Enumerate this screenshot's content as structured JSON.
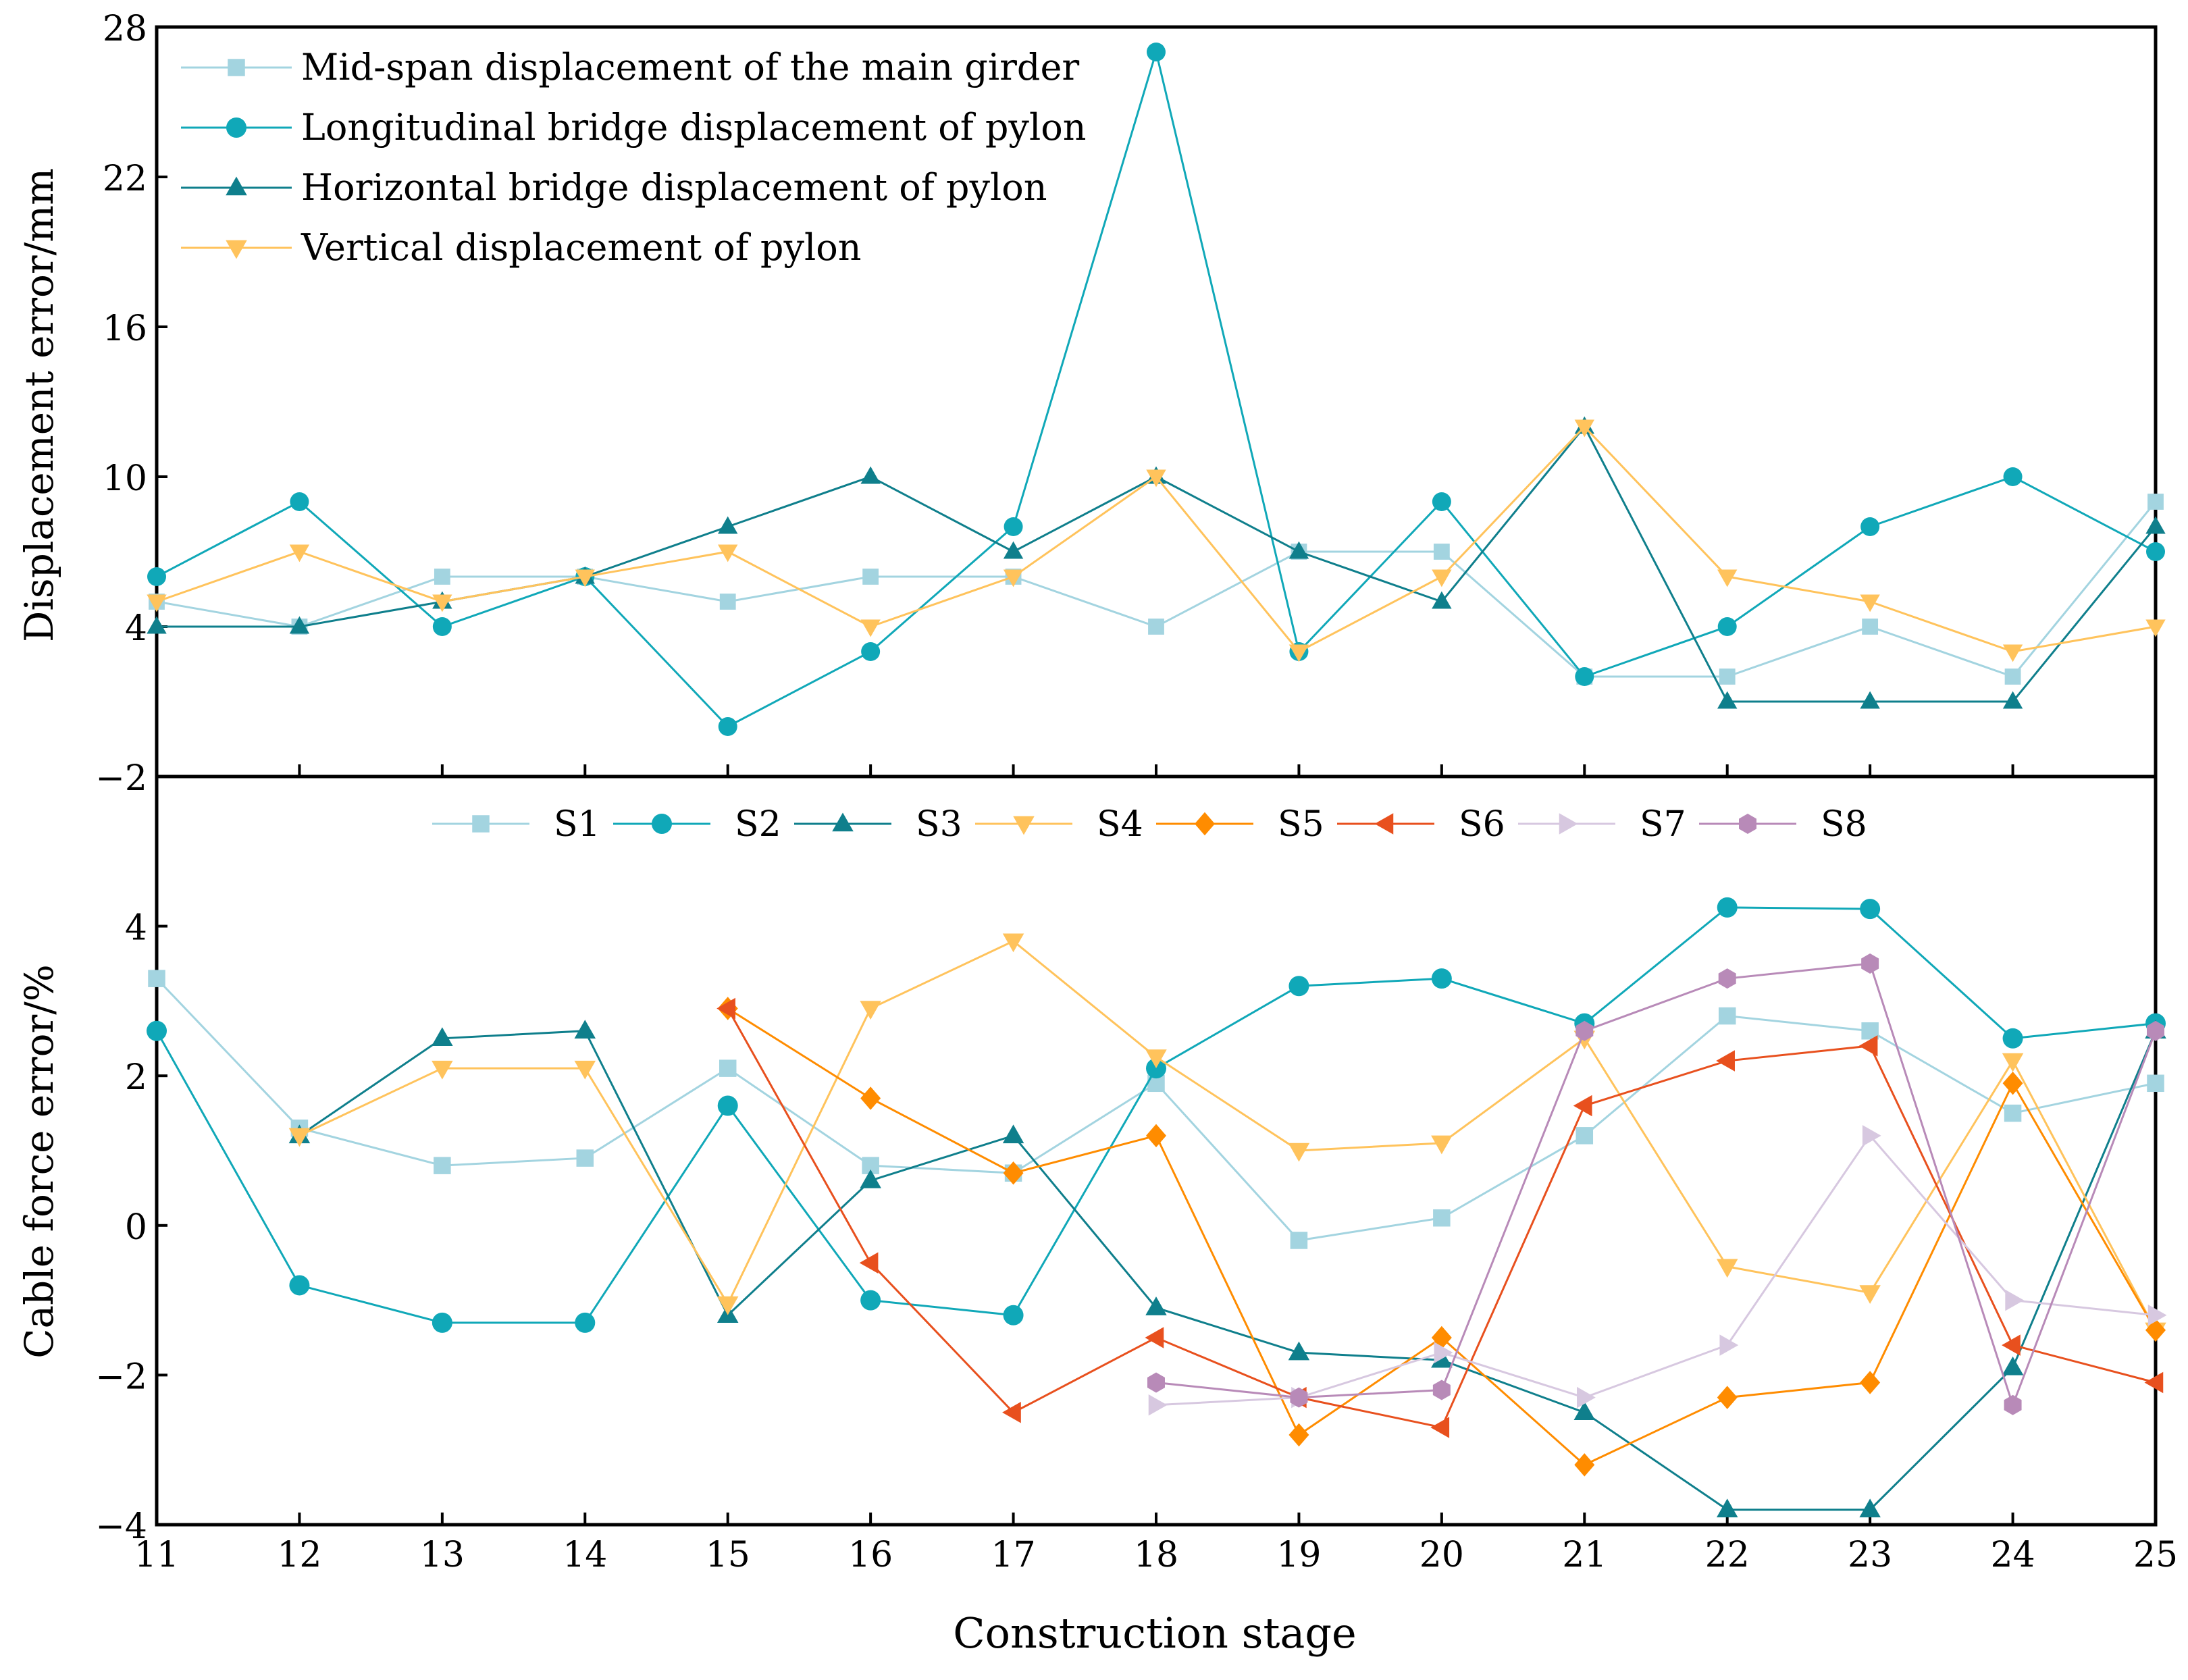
{
  "chart_data": [
    {
      "type": "line",
      "panel": "top",
      "title": "",
      "xlabel": "Construction stage",
      "ylabel": "Displacement error/mm",
      "xlim": [
        11,
        25
      ],
      "ylim": [
        -2,
        28
      ],
      "yticks": [
        -2,
        4,
        10,
        16,
        22,
        28
      ],
      "ytick_labels": [
        "−2",
        "4",
        "10",
        "16",
        "22",
        "28"
      ],
      "legend_position": "top-left",
      "x": [
        11,
        12,
        13,
        14,
        15,
        16,
        17,
        18,
        19,
        20,
        21,
        22,
        23,
        24,
        25
      ],
      "series": [
        {
          "name": "Mid-span displacement of the main girder",
          "marker": "square",
          "color": "#a3d4e0",
          "values": [
            5,
            4,
            6,
            6,
            5,
            6,
            6,
            4,
            7,
            7,
            2,
            2,
            4,
            2,
            9
          ]
        },
        {
          "name": "Longitudinal bridge displacement of pylon",
          "marker": "circle",
          "color": "#10a8b8",
          "values": [
            6,
            9,
            4,
            6,
            0,
            3,
            8,
            27,
            3,
            9,
            2,
            4,
            8,
            10,
            7
          ]
        },
        {
          "name": "Horizontal bridge displacement of pylon",
          "marker": "triangle-up",
          "color": "#0f7f8c",
          "values": [
            4,
            4,
            5,
            6,
            8,
            10,
            7,
            10,
            7,
            5,
            12,
            1,
            1,
            1,
            8
          ]
        },
        {
          "name": "Vertical displacement of pylon",
          "marker": "triangle-down",
          "color": "#ffc35c",
          "values": [
            5,
            7,
            5,
            6,
            7,
            4,
            6,
            10,
            3,
            6,
            12,
            6,
            5,
            3,
            4
          ]
        }
      ]
    },
    {
      "type": "line",
      "panel": "bottom",
      "title": "",
      "xlabel": "Construction stage",
      "ylabel": "Cable force error/%",
      "xlim": [
        11,
        25
      ],
      "ylim": [
        -4,
        6
      ],
      "yticks": [
        -4,
        -2,
        0,
        2,
        4
      ],
      "ytick_labels": [
        "−4",
        "−2",
        "0",
        "2",
        "4"
      ],
      "xticks": [
        11,
        12,
        13,
        14,
        15,
        16,
        17,
        18,
        19,
        20,
        21,
        22,
        23,
        24,
        25
      ],
      "xtick_labels": [
        "11",
        "12",
        "13",
        "14",
        "15",
        "16",
        "17",
        "18",
        "19",
        "20",
        "21",
        "22",
        "23",
        "24",
        "25"
      ],
      "legend_position": "top-center",
      "x": [
        11,
        12,
        13,
        14,
        15,
        16,
        17,
        18,
        19,
        20,
        21,
        22,
        23,
        24,
        25
      ],
      "series": [
        {
          "name": "S1",
          "marker": "square",
          "color": "#a3d4e0",
          "values": [
            3.3,
            1.3,
            0.8,
            0.9,
            2.1,
            0.8,
            0.7,
            1.9,
            -0.2,
            0.1,
            1.2,
            2.8,
            2.6,
            1.5,
            1.9
          ]
        },
        {
          "name": "S2",
          "marker": "circle",
          "color": "#10a8b8",
          "values": [
            2.6,
            -0.8,
            -1.3,
            -1.3,
            1.6,
            -1.0,
            -1.2,
            2.1,
            3.2,
            3.3,
            2.7,
            4.25,
            4.23,
            2.5,
            2.7
          ]
        },
        {
          "name": "S3",
          "marker": "triangle-up",
          "color": "#0f7f8c",
          "values": [
            null,
            1.2,
            2.5,
            2.6,
            -1.2,
            0.6,
            1.2,
            -1.1,
            -1.7,
            -1.8,
            -2.5,
            -3.8,
            -3.8,
            -1.9,
            2.6
          ]
        },
        {
          "name": "S4",
          "marker": "triangle-down",
          "color": "#ffc35c",
          "values": [
            null,
            1.2,
            2.1,
            2.1,
            -1.05,
            2.9,
            3.8,
            2.25,
            1.0,
            1.1,
            2.5,
            -0.55,
            -0.9,
            2.2,
            -1.4
          ]
        },
        {
          "name": "S5",
          "marker": "diamond",
          "color": "#ff8c00",
          "values": [
            null,
            null,
            null,
            null,
            2.9,
            1.7,
            0.7,
            1.2,
            -2.8,
            -1.5,
            -3.2,
            -2.3,
            -2.1,
            1.9,
            -1.4
          ]
        },
        {
          "name": "S6",
          "marker": "triangle-left",
          "color": "#e8501e",
          "values": [
            null,
            null,
            null,
            null,
            2.9,
            -0.5,
            -2.5,
            -1.5,
            -2.3,
            -2.7,
            1.6,
            2.2,
            2.4,
            -1.6,
            -2.1
          ]
        },
        {
          "name": "S7",
          "marker": "triangle-right",
          "color": "#d7c8e0",
          "values": [
            null,
            null,
            null,
            null,
            null,
            null,
            null,
            -2.4,
            -2.3,
            -1.7,
            -2.3,
            -1.6,
            1.2,
            -1.0,
            -1.2
          ]
        },
        {
          "name": "S8",
          "marker": "hexagon",
          "color": "#b88ab8",
          "values": [
            null,
            null,
            null,
            null,
            null,
            null,
            null,
            -2.1,
            -2.3,
            -2.2,
            2.6,
            3.3,
            3.5,
            -2.4,
            2.6
          ]
        }
      ]
    }
  ]
}
